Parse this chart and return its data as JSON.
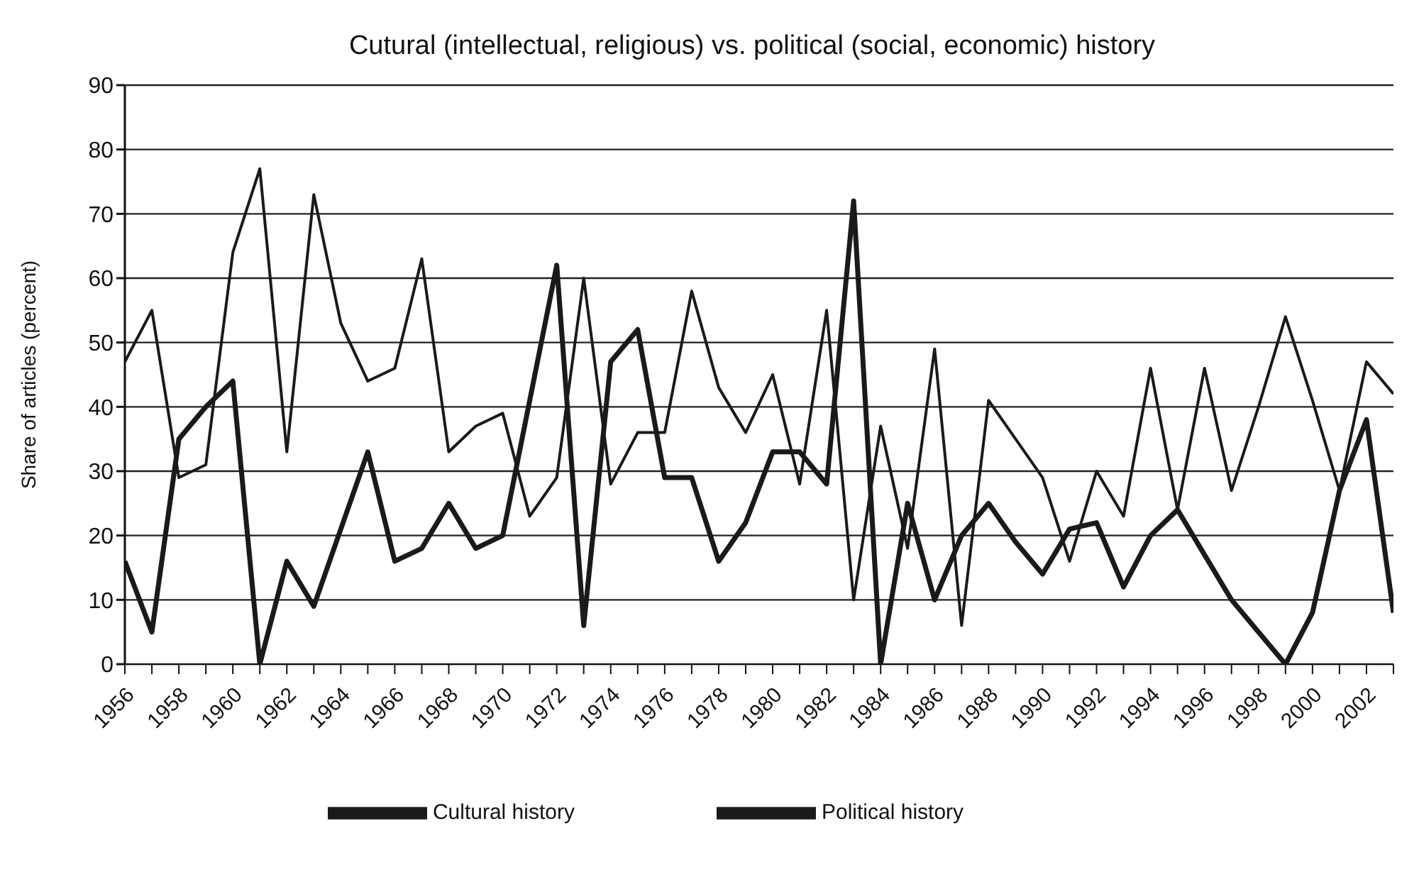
{
  "chart_data": {
    "type": "line",
    "title": "Cutural (intellectual, religious) vs. political (social, economic) history",
    "ylabel": "Share of articles (percent)",
    "x": [
      1956,
      1957,
      1958,
      1959,
      1960,
      1961,
      1962,
      1963,
      1964,
      1965,
      1966,
      1967,
      1968,
      1969,
      1970,
      1971,
      1972,
      1973,
      1974,
      1975,
      1976,
      1977,
      1978,
      1979,
      1980,
      1981,
      1982,
      1983,
      1984,
      1985,
      1986,
      1987,
      1988,
      1989,
      1990,
      1991,
      1992,
      1993,
      1994,
      1995,
      1996,
      1997,
      1998,
      1999,
      2000,
      2001,
      2002,
      2003
    ],
    "series": [
      {
        "name": "Cultural history",
        "color": "#1a1a1a",
        "values": [
          47,
          55,
          29,
          31,
          64,
          77,
          33,
          73,
          53,
          44,
          46,
          63,
          33,
          37,
          39,
          23,
          29,
          60,
          28,
          36,
          36,
          58,
          43,
          36,
          45,
          28,
          55,
          10,
          37,
          18,
          49,
          6,
          41,
          35,
          29,
          16,
          30,
          23,
          46,
          24,
          46,
          27,
          40,
          54,
          41,
          27,
          47,
          42
        ]
      },
      {
        "name": "Political history",
        "color": "#1a1a1a",
        "values": [
          16,
          5,
          35,
          40,
          44,
          0,
          16,
          9,
          21,
          33,
          16,
          18,
          25,
          18,
          20,
          41,
          62,
          6,
          47,
          52,
          29,
          29,
          16,
          22,
          33,
          33,
          28,
          72,
          0,
          25,
          10,
          20,
          25,
          19,
          14,
          21,
          22,
          12,
          20,
          24,
          17,
          10,
          5,
          0,
          8,
          27,
          38,
          8
        ]
      }
    ],
    "xlim": [
      1956,
      2003
    ],
    "xticks": [
      1956,
      {
        "value": 1957,
        "label": null
      },
      1958,
      {
        "value": 1959,
        "label": null
      },
      1960,
      {
        "value": 1961,
        "label": null
      },
      1962,
      {
        "value": 1963,
        "label": null
      },
      1964,
      {
        "value": 1965,
        "label": null
      },
      1966,
      {
        "value": 1967,
        "label": null
      },
      1968,
      {
        "value": 1969,
        "label": null
      },
      1970,
      {
        "value": 1971,
        "label": null
      },
      1972,
      {
        "value": 1973,
        "label": null
      },
      1974,
      {
        "value": 1975,
        "label": null
      },
      1976,
      {
        "value": 1977,
        "label": null
      },
      1978,
      {
        "value": 1979,
        "label": null
      },
      1980,
      {
        "value": 1981,
        "label": null
      },
      1982,
      {
        "value": 1983,
        "label": null
      },
      1984,
      {
        "value": 1985,
        "label": null
      },
      1986,
      {
        "value": 1987,
        "label": null
      },
      1988,
      {
        "value": 1989,
        "label": null
      },
      1990,
      {
        "value": 1991,
        "label": null
      },
      1992,
      {
        "value": 1993,
        "label": null
      },
      1994,
      {
        "value": 1995,
        "label": null
      },
      1996,
      {
        "value": 1997,
        "label": null
      },
      1998,
      {
        "value": 1999,
        "label": null
      },
      2000,
      {
        "value": 2001,
        "label": null
      },
      2002,
      {
        "value": 2003,
        "label": null
      }
    ],
    "ylim": [
      0,
      90
    ],
    "yticks": [
      0,
      10,
      20,
      30,
      40,
      50,
      60,
      70,
      80,
      90
    ],
    "grid": "y",
    "legend": "bottom",
    "marker": "none",
    "line_style": "solid"
  }
}
